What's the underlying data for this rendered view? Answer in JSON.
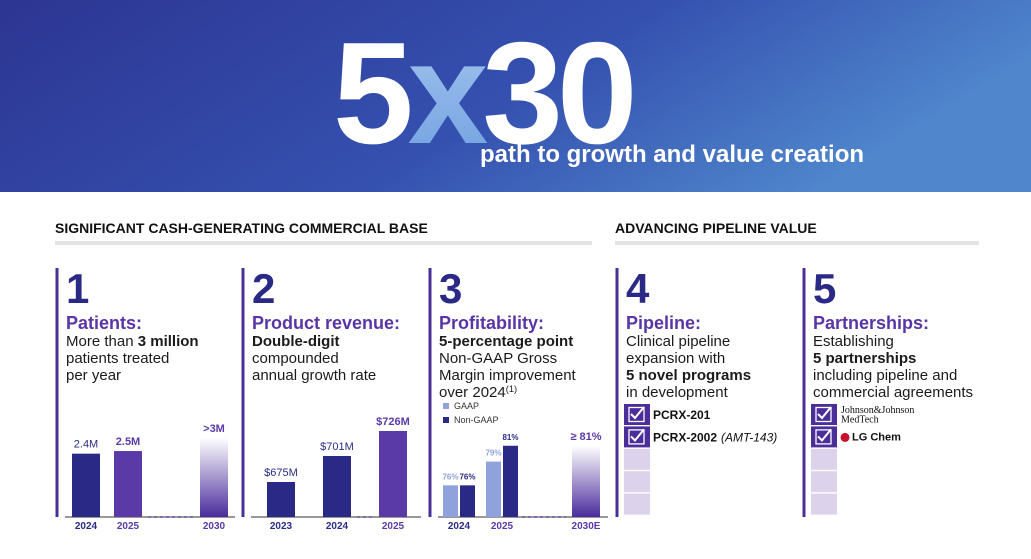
{
  "header": {
    "title_parts": [
      "5",
      "x",
      "30"
    ],
    "subtitle": "path to growth and value creation"
  },
  "sections": [
    {
      "heading": "SIGNIFICANT CASH-GENERATING COMMERCIAL BASE"
    },
    {
      "heading": "ADVANCING PIPELINE VALUE"
    }
  ],
  "panels": [
    {
      "number": "1",
      "title": "Patients:",
      "lines": [
        [
          {
            "text": "More than "
          },
          {
            "text": "3 million",
            "style": "bold"
          }
        ],
        [
          {
            "text": "patients treated"
          }
        ],
        [
          {
            "text": "per year"
          }
        ]
      ],
      "chart": {
        "type": "bar",
        "categories": [
          "2024",
          "2025",
          "2030"
        ],
        "category_colors": [
          "#2a2a86",
          "#5a3aa6",
          "#5a3aa6"
        ],
        "ylim": [
          0,
          3.6
        ],
        "series": [
          {
            "colors": [
              "#2a2a86",
              "#5a3aa6",
              "fade"
            ],
            "values": [
              2.4,
              2.5,
              3
            ],
            "value_labels": [
              "2.4M",
              "2.5M",
              ">3M"
            ]
          }
        ]
      }
    },
    {
      "number": "2",
      "title": "Product revenue:",
      "lines": [
        [
          {
            "text": "Double-digit",
            "style": "bold"
          }
        ],
        [
          {
            "text": "compounded"
          }
        ],
        [
          {
            "text": "annual growth rate"
          }
        ]
      ],
      "chart": {
        "type": "bar",
        "categories": [
          "2023",
          "2024",
          "2025"
        ],
        "category_colors": [
          "#2a2a86",
          "#2a2a86",
          "#5a3aa6"
        ],
        "ylim": [
          640,
          735
        ],
        "series": [
          {
            "colors": [
              "#2a2a86",
              "#2a2a86",
              "#5a3aa6"
            ],
            "values": [
              675,
              701,
              726
            ],
            "value_labels": [
              "$675M",
              "$701M",
              "$726M"
            ]
          }
        ]
      }
    },
    {
      "number": "3",
      "title": "Profitability:",
      "lines": [
        [
          {
            "text": "5-percentage point",
            "style": "bold"
          }
        ],
        [
          {
            "text": "Non-GAAP Gross"
          }
        ],
        [
          {
            "text": "Margin improvement"
          }
        ],
        [
          {
            "text": "over 2024"
          },
          {
            "text": "(1)",
            "style": "sup"
          }
        ]
      ],
      "chart": {
        "type": "bar",
        "categories": [
          "2024",
          "2025",
          "2030E"
        ],
        "category_colors": [
          "#2a2a86",
          "#5a3aa6",
          "#5a3aa6"
        ],
        "ylim": [
          72,
          84
        ],
        "series": [
          {
            "name": "GAAP",
            "color": "#8fa2dc",
            "values": [
              76,
              79,
              null
            ],
            "value_labels": [
              "76%",
              "79%",
              null
            ]
          },
          {
            "name": "Non-GAAP",
            "color": "#2a2a86",
            "values": [
              76,
              81,
              null
            ],
            "value_labels": [
              "76%",
              "81%",
              null
            ]
          },
          {
            "color": "fade",
            "values": [
              null,
              null,
              81
            ],
            "value_labels": [
              null,
              null,
              "≥ 81%"
            ]
          }
        ]
      }
    },
    {
      "number": "4",
      "title": "Pipeline:",
      "lines": [
        [
          {
            "text": "Clinical pipeline"
          }
        ],
        [
          {
            "text": "expansion with"
          }
        ],
        [
          {
            "text": "5 novel programs",
            "style": "bold"
          }
        ],
        [
          {
            "text": "in development"
          }
        ]
      ],
      "items": [
        {
          "segments": [
            {
              "text": "PCRX-201",
              "style": "bold"
            }
          ]
        },
        {
          "segments": [
            {
              "text": "PCRX-2002",
              "style": "bold"
            },
            {
              "text": "(AMT-143)",
              "style": "italic"
            }
          ]
        }
      ]
    },
    {
      "number": "5",
      "title": "Partnerships:",
      "lines": [
        [
          {
            "text": "Establishing"
          }
        ],
        [
          {
            "text": "5 partnerships",
            "style": "bold"
          }
        ],
        [
          {
            "text": "including pipeline and"
          }
        ],
        [
          {
            "text": "commercial agreements"
          }
        ]
      ],
      "items": [
        {
          "lines": [
            "Johnson&Johnson",
            "MedTech"
          ]
        },
        {
          "lines": [
            "LG Chem"
          ],
          "icon": "lg"
        }
      ]
    }
  ]
}
